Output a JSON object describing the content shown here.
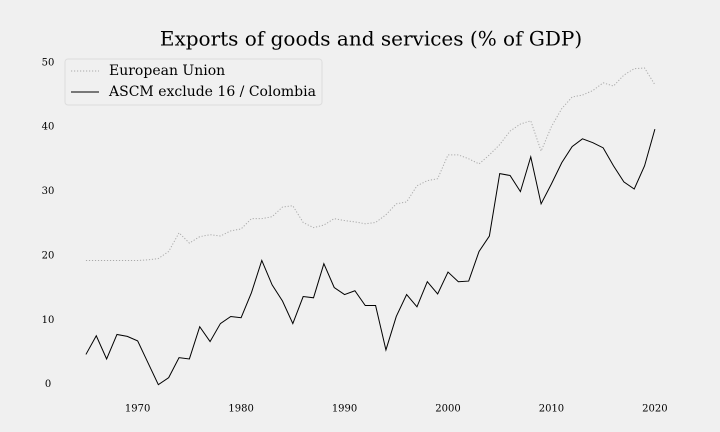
{
  "chart_data": {
    "type": "line",
    "title": "Exports of goods and services (% of GDP)",
    "x": [
      1965,
      1966,
      1967,
      1968,
      1969,
      1970,
      1971,
      1972,
      1973,
      1974,
      1975,
      1976,
      1977,
      1978,
      1979,
      1980,
      1981,
      1982,
      1983,
      1984,
      1985,
      1986,
      1987,
      1988,
      1989,
      1990,
      1991,
      1992,
      1993,
      1994,
      1995,
      1996,
      1997,
      1998,
      1999,
      2000,
      2001,
      2002,
      2003,
      2004,
      2005,
      2006,
      2007,
      2008,
      2009,
      2010,
      2011,
      2012,
      2013,
      2014,
      2015,
      2016,
      2017,
      2018,
      2019,
      2020
    ],
    "series": [
      {
        "name": "European Union",
        "color": "#aaaaaa",
        "linestyle": "dotted",
        "values": [
          19.3,
          19.3,
          19.3,
          19.3,
          19.3,
          19.3,
          19.4,
          19.6,
          20.7,
          23.6,
          22.0,
          23.0,
          23.3,
          23.1,
          23.9,
          24.2,
          25.8,
          25.8,
          26.1,
          27.6,
          27.8,
          25.2,
          24.4,
          24.8,
          25.8,
          25.5,
          25.3,
          25.0,
          25.2,
          26.4,
          28.1,
          28.4,
          30.9,
          31.7,
          32.0,
          35.7,
          35.7,
          35.1,
          34.3,
          35.7,
          37.3,
          39.4,
          40.5,
          41.0,
          36.3,
          40.1,
          42.9,
          44.7,
          45.0,
          45.7,
          46.9,
          46.4,
          48.1,
          49.1,
          49.2,
          46.6
        ]
      },
      {
        "name": "ASCM exclude 16 / Colombia",
        "color": "#000000",
        "linestyle": "solid",
        "values": [
          4.7,
          7.6,
          4.0,
          7.8,
          7.5,
          6.8,
          3.4,
          0.0,
          1.1,
          4.2,
          4.0,
          9.0,
          6.7,
          9.5,
          10.6,
          10.4,
          14.3,
          19.3,
          15.5,
          13.0,
          9.5,
          13.7,
          13.5,
          18.8,
          15.1,
          14.0,
          14.6,
          12.3,
          12.3,
          5.4,
          10.6,
          14.0,
          12.1,
          16.0,
          14.1,
          17.5,
          16.0,
          16.1,
          20.7,
          23.1,
          32.8,
          32.5,
          30.0,
          35.4,
          28.1,
          31.2,
          34.5,
          37.0,
          38.2,
          37.6,
          36.8,
          34.0,
          31.5,
          30.4,
          34.0,
          39.7
        ]
      }
    ],
    "xlim": [
      1962.3,
      2023.2
    ],
    "xticks": [
      1970,
      1980,
      1990,
      2000,
      2010,
      2020
    ],
    "ylim": [
      -3,
      52
    ],
    "yticks": [
      0,
      10,
      20,
      30,
      40,
      50
    ],
    "grid": false,
    "legend": "upper left"
  }
}
